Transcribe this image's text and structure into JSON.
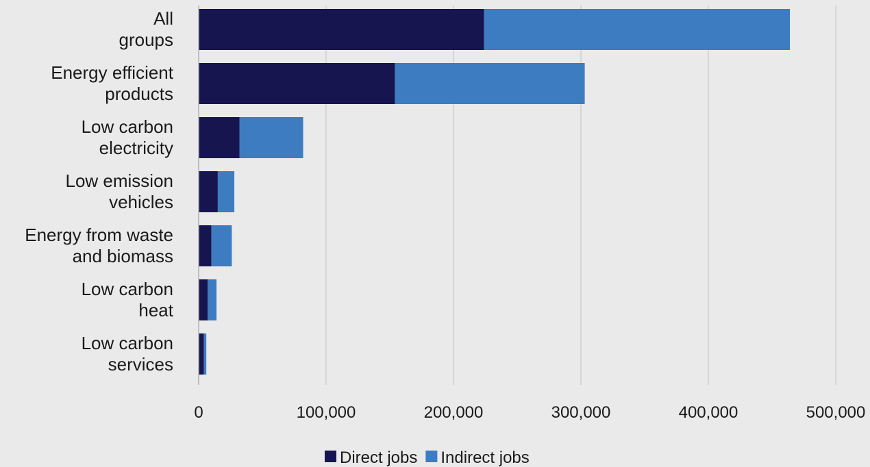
{
  "chart_data": {
    "type": "bar",
    "orientation": "horizontal",
    "stacked": true,
    "title": "",
    "xlabel": "",
    "ylabel": "",
    "categories": [
      [
        "All",
        "groups"
      ],
      [
        "Energy efficient",
        "products"
      ],
      [
        "Low carbon",
        "electricity"
      ],
      [
        "Low emission",
        "vehicles"
      ],
      [
        "Energy from waste",
        "and biomass"
      ],
      [
        "Low carbon",
        "heat"
      ],
      [
        "Low carbon",
        "services"
      ]
    ],
    "series": [
      {
        "name": "Direct jobs",
        "color": "#16154f",
        "values": [
          224000,
          154000,
          32000,
          15000,
          10000,
          7000,
          4000
        ]
      },
      {
        "name": "Indirect jobs",
        "color": "#3d7cc0",
        "values": [
          240000,
          149000,
          50000,
          13000,
          16000,
          7000,
          2000
        ]
      }
    ],
    "xlim": [
      0,
      500000
    ],
    "x_ticks": [
      {
        "value": 0,
        "label": "0"
      },
      {
        "value": 100000,
        "label": "100,000"
      },
      {
        "value": 200000,
        "label": "200,000"
      },
      {
        "value": 300000,
        "label": "300,000"
      },
      {
        "value": 400000,
        "label": "400,000"
      },
      {
        "value": 500000,
        "label": "500,000"
      }
    ],
    "grid": true,
    "legend": "bottom-center",
    "colors": {
      "background": "#ebeaea",
      "grid": "#cfcfcf",
      "axis": "#b0b0b0"
    }
  }
}
